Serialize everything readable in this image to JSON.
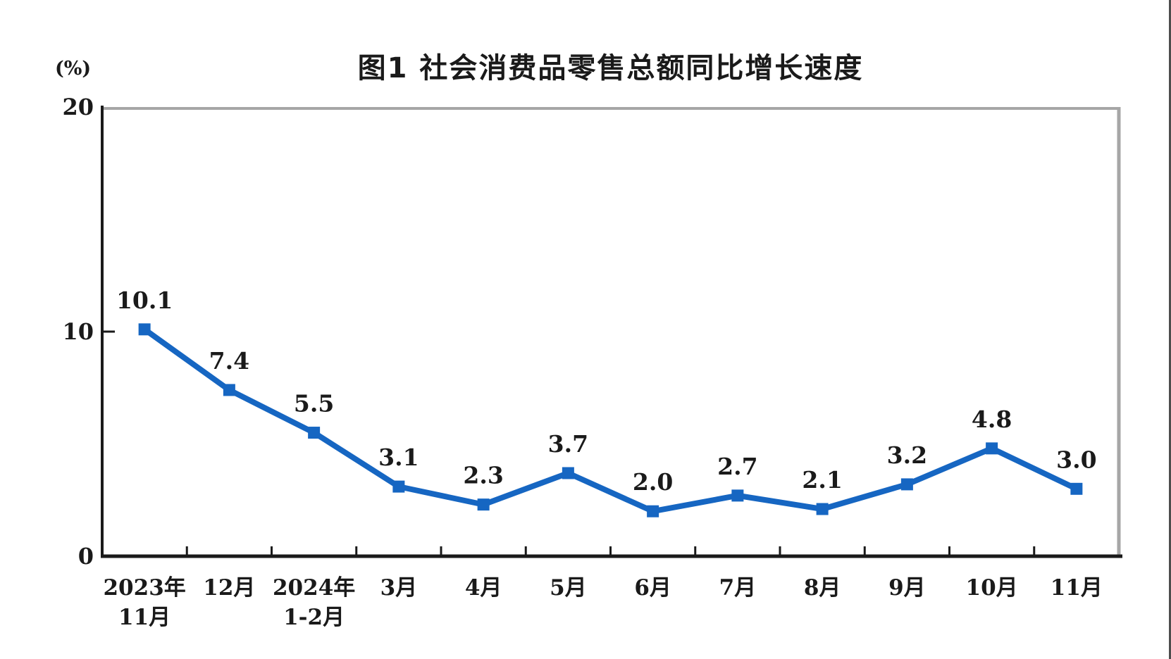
{
  "chart": {
    "title": "图1 社会消费品零售总额同比增长速度",
    "unit_label": "(%)"
  },
  "chart_data": {
    "type": "line",
    "title": "图1 社会消费品零售总额同比增长速度",
    "ylabel": "(%)",
    "xlabel": "",
    "categories": [
      "2023年11月",
      "12月",
      "2024年1-2月",
      "3月",
      "4月",
      "5月",
      "6月",
      "7月",
      "8月",
      "9月",
      "10月",
      "11月"
    ],
    "x_tick_labels": [
      [
        "2023年",
        "11月"
      ],
      [
        "12月"
      ],
      [
        "2024年",
        "1-2月"
      ],
      [
        "3月"
      ],
      [
        "4月"
      ],
      [
        "5月"
      ],
      [
        "6月"
      ],
      [
        "7月"
      ],
      [
        "8月"
      ],
      [
        "9月"
      ],
      [
        "10月"
      ],
      [
        "11月"
      ]
    ],
    "series": [
      {
        "values": [
          10.1,
          7.4,
          5.5,
          3.1,
          2.3,
          3.7,
          2.0,
          2.7,
          2.1,
          3.2,
          4.8,
          3.0
        ],
        "point_labels": [
          "10.1",
          "7.4",
          "5.5",
          "3.1",
          "2.3",
          "3.7",
          "2.0",
          "2.7",
          "2.1",
          "3.2",
          "4.8",
          "3.0"
        ],
        "marker": "square"
      }
    ],
    "ylim": [
      0,
      20
    ],
    "yticks": [
      "0",
      "10",
      "20"
    ],
    "grid": false,
    "legend": "none",
    "colors": {
      "line": "#1666C2",
      "axis": "#1a1a1a",
      "frame": "#a6a6a6",
      "text": "#1a1a1a",
      "screen_edge": "#4d4d4d"
    }
  }
}
